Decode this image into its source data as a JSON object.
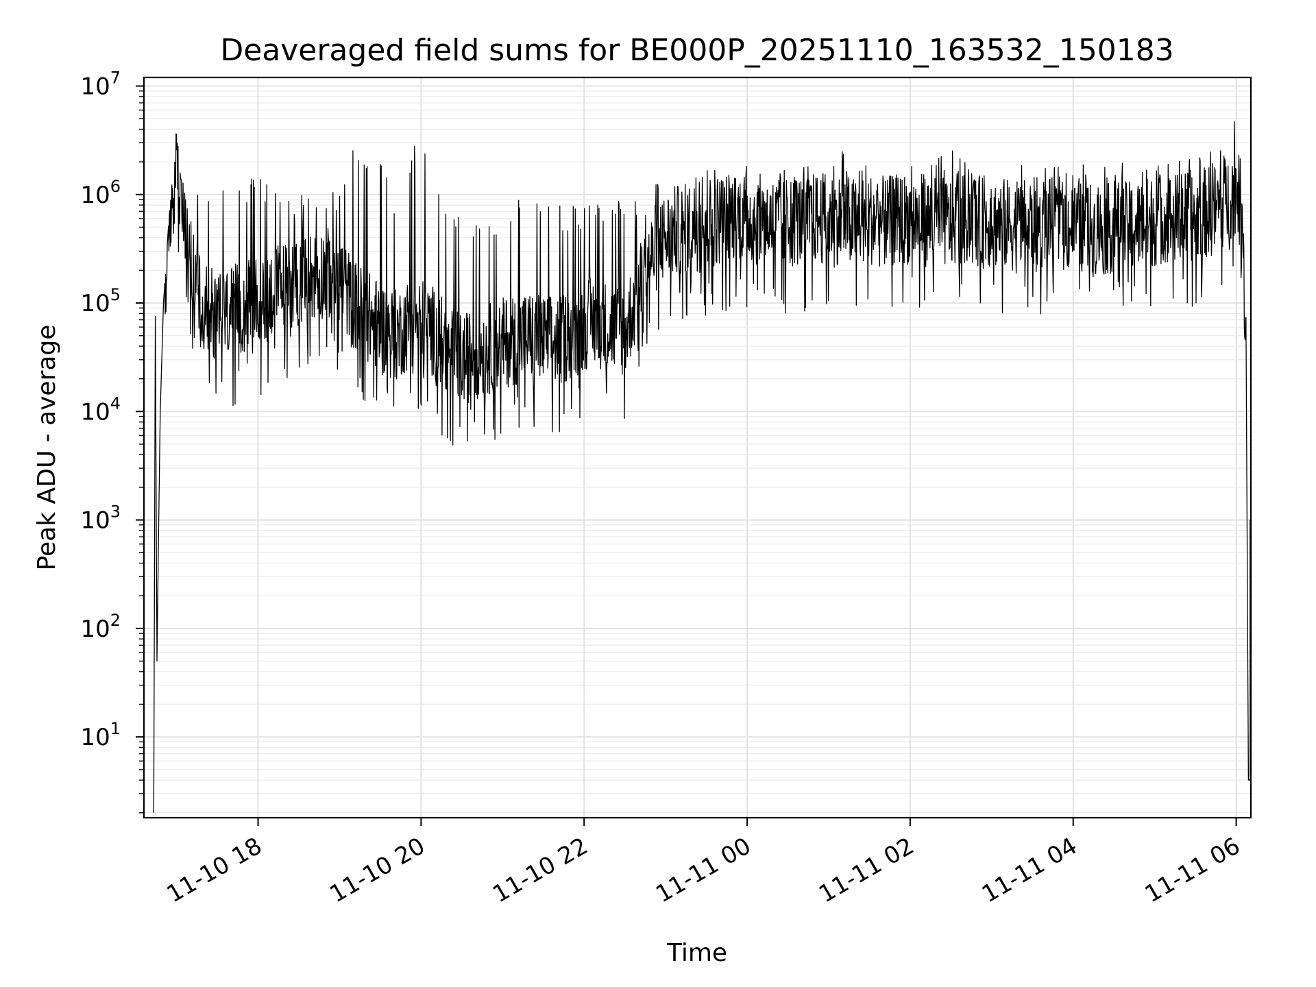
{
  "chart_data": {
    "type": "line",
    "title": "Deaveraged field sums for BE000P_20251110_163532_150183",
    "xlabel": "Time",
    "ylabel": "Peak ADU - average",
    "yscale": "log",
    "ylim": [
      1.8,
      12000000
    ],
    "xlim_hours": [
      16.6,
      30.18
    ],
    "grid": true,
    "x_ticks": [
      {
        "label": "11-10 18",
        "hour": 18
      },
      {
        "label": "11-10 20",
        "hour": 20
      },
      {
        "label": "11-10 22",
        "hour": 22
      },
      {
        "label": "11-11 00",
        "hour": 24
      },
      {
        "label": "11-11 02",
        "hour": 26
      },
      {
        "label": "11-11 04",
        "hour": 28
      },
      {
        "label": "11-11 06",
        "hour": 30
      }
    ],
    "y_ticks": [
      {
        "base": "10",
        "exp": "1",
        "value": 10
      },
      {
        "base": "10",
        "exp": "2",
        "value": 100
      },
      {
        "base": "10",
        "exp": "3",
        "value": 1000
      },
      {
        "base": "10",
        "exp": "4",
        "value": 10000
      },
      {
        "base": "10",
        "exp": "5",
        "value": 100000
      },
      {
        "base": "10",
        "exp": "6",
        "value": 1000000
      },
      {
        "base": "10",
        "exp": "7",
        "value": 10000000
      }
    ],
    "series": [
      {
        "name": "deaveraged field sum",
        "color": "#000000",
        "x_hours": [
          16.72,
          16.74,
          16.76,
          16.78,
          16.8,
          16.84,
          16.9,
          17.0,
          17.05,
          17.1,
          17.2,
          17.3,
          17.4,
          17.6,
          17.8,
          18.0,
          18.2,
          18.4,
          18.6,
          18.8,
          19.0,
          19.15,
          19.3,
          19.5,
          19.7,
          19.9,
          20.1,
          20.3,
          20.5,
          20.7,
          20.9,
          21.1,
          21.3,
          21.5,
          21.7,
          21.9,
          22.1,
          22.3,
          22.5,
          22.7,
          22.9,
          23.1,
          23.3,
          23.5,
          23.7,
          23.9,
          24.1,
          24.3,
          24.5,
          24.7,
          24.9,
          25.1,
          25.3,
          25.5,
          25.7,
          25.9,
          26.1,
          26.3,
          26.5,
          26.7,
          26.9,
          27.1,
          27.3,
          27.5,
          27.7,
          27.9,
          28.1,
          28.3,
          28.5,
          28.7,
          28.9,
          29.1,
          29.3,
          29.5,
          29.7,
          29.9,
          30.0,
          30.05,
          30.08,
          30.1,
          30.12,
          30.15,
          30.17
        ],
        "baseline": [
          2,
          75000,
          50,
          800,
          10000,
          100000,
          500000,
          1800000,
          1200000,
          700000,
          250000,
          90000,
          80000,
          80000,
          90000,
          100000,
          130000,
          150000,
          170000,
          190000,
          180000,
          100000,
          80000,
          60000,
          50000,
          70000,
          60000,
          40000,
          30000,
          35000,
          40000,
          45000,
          50000,
          45000,
          45000,
          55000,
          70000,
          60000,
          55000,
          150000,
          350000,
          450000,
          500000,
          550000,
          600000,
          650000,
          600000,
          550000,
          550000,
          600000,
          600000,
          600000,
          550000,
          600000,
          550000,
          600000,
          600000,
          550000,
          550000,
          600000,
          550000,
          550000,
          500000,
          550000,
          550000,
          500000,
          500000,
          450000,
          500000,
          500000,
          550000,
          600000,
          600000,
          650000,
          700000,
          900000,
          1200000,
          800000,
          300000,
          150000,
          60000,
          4,
          4
        ],
        "upper_envelope": [
          2,
          75000,
          50,
          800,
          10000,
          100000,
          500000,
          4200000,
          1400000,
          1200000,
          1500000,
          1500000,
          1400000,
          1400000,
          1500000,
          1400000,
          1300000,
          1000000,
          1000000,
          1000000,
          1100000,
          2600000,
          2600000,
          2500000,
          700000,
          2900000,
          2900000,
          800000,
          600000,
          700000,
          600000,
          600000,
          2000000,
          900000,
          800000,
          800000,
          800000,
          900000,
          900000,
          1100000,
          1300000,
          1500000,
          1800000,
          2600000,
          2000000,
          1800000,
          1900000,
          1700000,
          1700000,
          1800000,
          1900000,
          3300000,
          1800000,
          1900000,
          1900000,
          2000000,
          2100000,
          2200000,
          2600000,
          1900000,
          1900000,
          2000000,
          1900000,
          2000000,
          1800000,
          1800000,
          1900000,
          1900000,
          2000000,
          2000000,
          2000000,
          2100000,
          2200000,
          2300000,
          2600000,
          3200000,
          6200000,
          3000000,
          600000,
          300000,
          200000,
          4,
          1000
        ]
      }
    ]
  }
}
